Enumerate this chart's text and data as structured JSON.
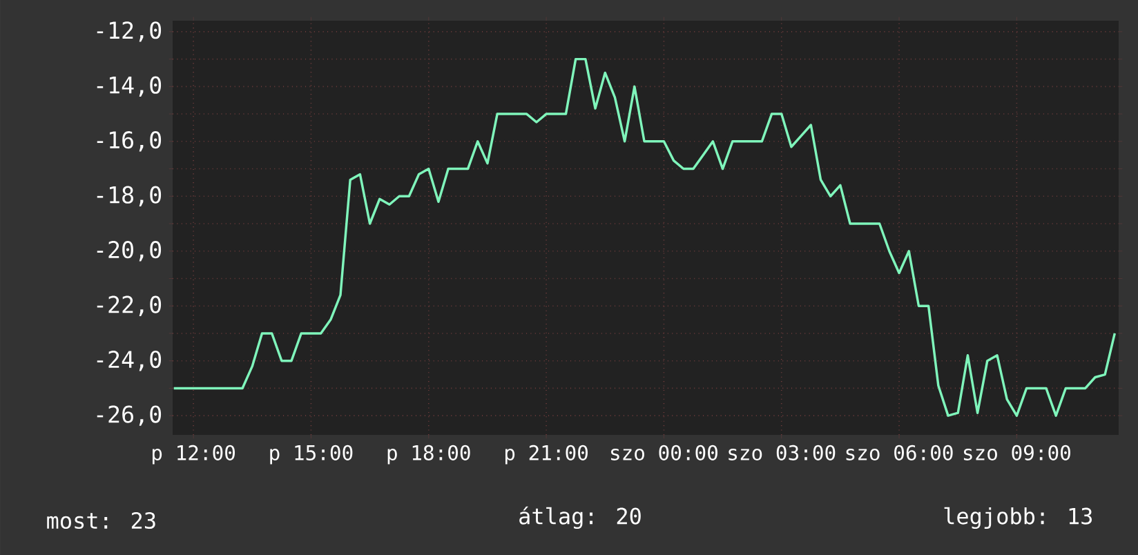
{
  "chart_data": {
    "type": "line",
    "categories": [
      null,
      null,
      "p 12:00",
      null,
      null,
      null,
      null,
      null,
      null,
      null,
      null,
      null,
      null,
      null,
      "p 15:00",
      null,
      null,
      null,
      null,
      null,
      null,
      null,
      null,
      null,
      null,
      null,
      "p 18:00",
      null,
      null,
      null,
      null,
      null,
      null,
      null,
      null,
      null,
      null,
      null,
      "p 21:00",
      null,
      null,
      null,
      null,
      null,
      null,
      null,
      null,
      null,
      null,
      null,
      "szo 00:00",
      null,
      null,
      null,
      null,
      null,
      null,
      null,
      null,
      null,
      null,
      null,
      "szo 03:00",
      null,
      null,
      null,
      null,
      null,
      null,
      null,
      null,
      null,
      null,
      null,
      "szo 06:00",
      null,
      null,
      null,
      null,
      null,
      null,
      null,
      null,
      null,
      null,
      null,
      "szo 09:00",
      null,
      null,
      null,
      null,
      null,
      null,
      null,
      null,
      null,
      null
    ],
    "series": [
      {
        "color": "#7ff5bb",
        "values": [
          -25,
          -25,
          -25,
          -25,
          -25,
          -25,
          -25,
          -25,
          -24.2,
          -23,
          -23,
          -24,
          -24,
          -23,
          -23,
          -23,
          -22.5,
          -21.6,
          -17.4,
          -17.2,
          -19,
          -18.1,
          -18.3,
          -18,
          -18,
          -17.2,
          -17,
          -18.2,
          -17,
          -17,
          -17,
          -16,
          -16.8,
          -15,
          -15,
          -15,
          -15,
          -15.3,
          -15,
          -15,
          -15,
          -13,
          -13,
          -14.8,
          -13.5,
          -14.4,
          -16,
          -14,
          -16,
          -16,
          -16,
          -16.7,
          -17,
          -17,
          -16.5,
          -16,
          -17,
          -16,
          -16,
          -16,
          -16,
          -15,
          -15,
          -16.2,
          -15.8,
          -15.4,
          -17.4,
          -18,
          -17.6,
          -19,
          -19,
          -19,
          -19,
          -20,
          -20.8,
          -20,
          -22,
          -22,
          -24.9,
          -26,
          -25.9,
          -23.8,
          -25.9,
          -24,
          -23.8,
          -25.4,
          -26,
          -25,
          -25,
          -25,
          -26,
          -25,
          -25,
          -25,
          -24.6,
          -24.5,
          -23
        ]
      }
    ],
    "ylim": [
      -26.7,
      -11.6
    ],
    "yticks": [
      {
        "value": -12,
        "label": "-12,0"
      },
      {
        "value": -13,
        "label": null
      },
      {
        "value": -14,
        "label": "-14,0"
      },
      {
        "value": -15,
        "label": null
      },
      {
        "value": -16,
        "label": "-16,0"
      },
      {
        "value": -17,
        "label": null
      },
      {
        "value": -18,
        "label": "-18,0"
      },
      {
        "value": -19,
        "label": null
      },
      {
        "value": -20,
        "label": "-20,0"
      },
      {
        "value": -21,
        "label": null
      },
      {
        "value": -22,
        "label": "-22,0"
      },
      {
        "value": -23,
        "label": null
      },
      {
        "value": -24,
        "label": "-24,0"
      },
      {
        "value": -25,
        "label": null
      },
      {
        "value": -26,
        "label": "-26,0"
      }
    ],
    "grid": true,
    "annotations": [
      "most: 23",
      "átlag: 20",
      "legjobb: 13"
    ]
  }
}
